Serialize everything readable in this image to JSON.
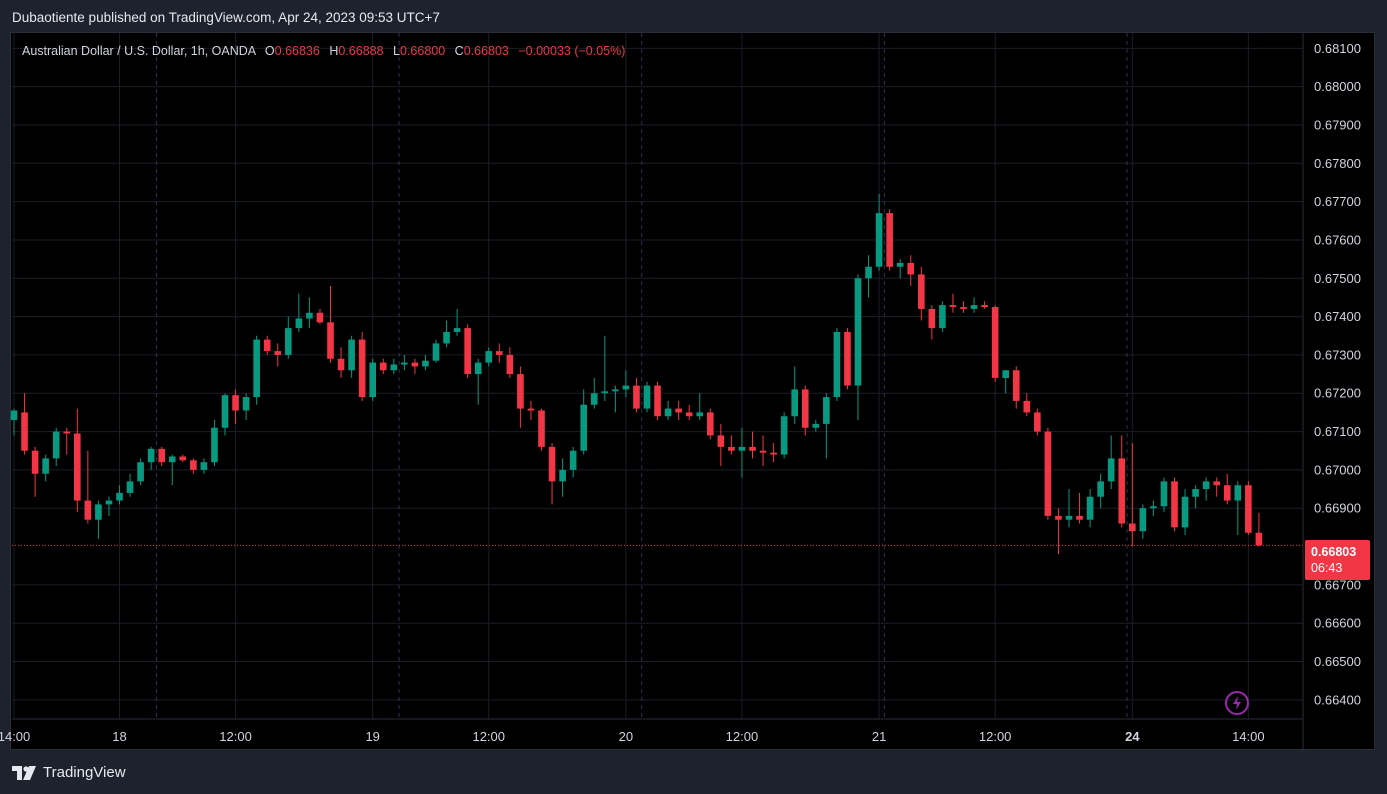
{
  "caption": "Dubaotiente published on TradingView.com, Apr 24, 2023 09:53 UTC+7",
  "legend": {
    "symbol": "Australian Dollar / U.S. Dollar, 1h, OANDA",
    "o_label": "O",
    "o_value": "0.66836",
    "h_label": "H",
    "h_value": "0.66888",
    "l_label": "L",
    "l_value": "0.66800",
    "c_label": "C",
    "c_value": "0.66803",
    "change": "−0.00033 (−0.05%)"
  },
  "last_price": {
    "price": "0.66803",
    "countdown": "06:43",
    "value": 0.66803
  },
  "brand": {
    "name": "TradingView"
  },
  "colors": {
    "up": "#089981",
    "down": "#f23645",
    "background": "#000000",
    "grid": "#1b1e27",
    "axis_text": "#d1d4dc",
    "separator": "#2a3550"
  },
  "chart_data": {
    "type": "candlestick",
    "timeframe": "1h",
    "ylim": [
      0.6635,
      0.6814
    ],
    "y_ticks": [
      "0.68100",
      "0.68000",
      "0.67900",
      "0.67800",
      "0.67700",
      "0.67600",
      "0.67500",
      "0.67400",
      "0.67300",
      "0.67200",
      "0.67100",
      "0.67000",
      "0.66900",
      "0.66700",
      "0.66600",
      "0.66500",
      "0.66400"
    ],
    "x_ticks": [
      {
        "label": "14:00",
        "bar": 0
      },
      {
        "label": "18",
        "bar": 10
      },
      {
        "label": "12:00",
        "bar": 21
      },
      {
        "label": "19",
        "bar": 34
      },
      {
        "label": "12:00",
        "bar": 45
      },
      {
        "label": "20",
        "bar": 58
      },
      {
        "label": "12:00",
        "bar": 69
      },
      {
        "label": "21",
        "bar": 82
      },
      {
        "label": "12:00",
        "bar": 93
      },
      {
        "label": "24",
        "bar": 106
      },
      {
        "label": "14:00",
        "bar": 117
      }
    ],
    "day_separators": [
      13.5,
      36.5,
      59.5,
      82.5,
      105.5
    ],
    "candles": [
      [
        0.6713,
        0.6716,
        0.6709,
        0.67155
      ],
      [
        0.6715,
        0.672,
        0.6704,
        0.6705
      ],
      [
        0.6705,
        0.6706,
        0.6693,
        0.6699
      ],
      [
        0.6699,
        0.6704,
        0.6697,
        0.6703
      ],
      [
        0.6703,
        0.6711,
        0.6701,
        0.671
      ],
      [
        0.671,
        0.6711,
        0.6704,
        0.67095
      ],
      [
        0.67095,
        0.6716,
        0.6689,
        0.6692
      ],
      [
        0.6692,
        0.6705,
        0.6686,
        0.6687
      ],
      [
        0.6687,
        0.6692,
        0.6682,
        0.6691
      ],
      [
        0.6691,
        0.6693,
        0.6688,
        0.6692
      ],
      [
        0.6692,
        0.6696,
        0.6691,
        0.6694
      ],
      [
        0.6694,
        0.6699,
        0.6693,
        0.6697
      ],
      [
        0.6697,
        0.6703,
        0.6696,
        0.6702
      ],
      [
        0.6702,
        0.6706,
        0.67,
        0.67055
      ],
      [
        0.67055,
        0.6706,
        0.6701,
        0.6702
      ],
      [
        0.6702,
        0.6704,
        0.6696,
        0.67035
      ],
      [
        0.67035,
        0.6704,
        0.6702,
        0.67025
      ],
      [
        0.67025,
        0.6703,
        0.6699,
        0.67
      ],
      [
        0.67,
        0.6703,
        0.6699,
        0.6702
      ],
      [
        0.6702,
        0.6713,
        0.6701,
        0.6711
      ],
      [
        0.6711,
        0.672,
        0.6709,
        0.67195
      ],
      [
        0.67195,
        0.6721,
        0.6712,
        0.67155
      ],
      [
        0.67155,
        0.672,
        0.6713,
        0.6719
      ],
      [
        0.6719,
        0.6735,
        0.6717,
        0.6734
      ],
      [
        0.6734,
        0.6735,
        0.673,
        0.6731
      ],
      [
        0.6731,
        0.6733,
        0.6727,
        0.673
      ],
      [
        0.673,
        0.674,
        0.6729,
        0.6737
      ],
      [
        0.6737,
        0.6746,
        0.6736,
        0.67395
      ],
      [
        0.67395,
        0.6745,
        0.6737,
        0.6741
      ],
      [
        0.6741,
        0.6742,
        0.6738,
        0.67385
      ],
      [
        0.67385,
        0.6748,
        0.6728,
        0.6729
      ],
      [
        0.6729,
        0.6732,
        0.6724,
        0.6726
      ],
      [
        0.6726,
        0.6735,
        0.6724,
        0.6734
      ],
      [
        0.6734,
        0.6736,
        0.6718,
        0.6719
      ],
      [
        0.6719,
        0.6729,
        0.6718,
        0.6728
      ],
      [
        0.6728,
        0.6729,
        0.6725,
        0.6726
      ],
      [
        0.6726,
        0.6729,
        0.6725,
        0.67275
      ],
      [
        0.67275,
        0.673,
        0.6726,
        0.6728
      ],
      [
        0.6728,
        0.6729,
        0.6725,
        0.6727
      ],
      [
        0.6727,
        0.673,
        0.6726,
        0.67285
      ],
      [
        0.67285,
        0.6734,
        0.6728,
        0.6733
      ],
      [
        0.6733,
        0.6739,
        0.6732,
        0.6736
      ],
      [
        0.6736,
        0.6742,
        0.6735,
        0.6737
      ],
      [
        0.6737,
        0.6738,
        0.6724,
        0.6725
      ],
      [
        0.6725,
        0.6729,
        0.6717,
        0.6728
      ],
      [
        0.6728,
        0.6732,
        0.6727,
        0.6731
      ],
      [
        0.6731,
        0.6733,
        0.6728,
        0.673
      ],
      [
        0.673,
        0.6732,
        0.6724,
        0.6725
      ],
      [
        0.6725,
        0.6727,
        0.6711,
        0.6716
      ],
      [
        0.6716,
        0.6718,
        0.6713,
        0.67155
      ],
      [
        0.67155,
        0.6716,
        0.6705,
        0.6706
      ],
      [
        0.6706,
        0.6707,
        0.6691,
        0.6697
      ],
      [
        0.6697,
        0.6703,
        0.6693,
        0.67
      ],
      [
        0.67,
        0.6706,
        0.6698,
        0.6705
      ],
      [
        0.6705,
        0.6721,
        0.6704,
        0.6717
      ],
      [
        0.6717,
        0.6724,
        0.6716,
        0.672
      ],
      [
        0.672,
        0.6735,
        0.6718,
        0.67205
      ],
      [
        0.67205,
        0.6722,
        0.6715,
        0.6721
      ],
      [
        0.6721,
        0.6726,
        0.6719,
        0.6722
      ],
      [
        0.6722,
        0.6724,
        0.6715,
        0.6716
      ],
      [
        0.6716,
        0.6723,
        0.6715,
        0.6722
      ],
      [
        0.6722,
        0.6723,
        0.6713,
        0.6714
      ],
      [
        0.6714,
        0.6718,
        0.6713,
        0.6716
      ],
      [
        0.6716,
        0.6718,
        0.6713,
        0.6715
      ],
      [
        0.6715,
        0.6717,
        0.6713,
        0.6714
      ],
      [
        0.6714,
        0.672,
        0.6713,
        0.6715
      ],
      [
        0.6715,
        0.6716,
        0.6708,
        0.6709
      ],
      [
        0.6709,
        0.6712,
        0.6701,
        0.6706
      ],
      [
        0.6706,
        0.6709,
        0.6704,
        0.6705
      ],
      [
        0.6705,
        0.6711,
        0.6698,
        0.6706
      ],
      [
        0.6706,
        0.671,
        0.6703,
        0.6705
      ],
      [
        0.6705,
        0.6709,
        0.6701,
        0.67045
      ],
      [
        0.67045,
        0.6707,
        0.6702,
        0.6704
      ],
      [
        0.6704,
        0.6715,
        0.6703,
        0.6714
      ],
      [
        0.6714,
        0.6727,
        0.6712,
        0.6721
      ],
      [
        0.6721,
        0.6722,
        0.6709,
        0.6711
      ],
      [
        0.6711,
        0.6713,
        0.671,
        0.6712
      ],
      [
        0.6712,
        0.672,
        0.6703,
        0.6719
      ],
      [
        0.6719,
        0.6737,
        0.6718,
        0.6736
      ],
      [
        0.6736,
        0.6737,
        0.6721,
        0.6722
      ],
      [
        0.6722,
        0.6751,
        0.6713,
        0.675
      ],
      [
        0.675,
        0.6756,
        0.6745,
        0.6753
      ],
      [
        0.6753,
        0.6772,
        0.6752,
        0.6767
      ],
      [
        0.6767,
        0.6768,
        0.6752,
        0.6753
      ],
      [
        0.6753,
        0.6755,
        0.675,
        0.6754
      ],
      [
        0.6754,
        0.6756,
        0.6748,
        0.6751
      ],
      [
        0.6751,
        0.6753,
        0.6739,
        0.6742
      ],
      [
        0.6742,
        0.6743,
        0.6734,
        0.6737
      ],
      [
        0.6737,
        0.6744,
        0.6736,
        0.6743
      ],
      [
        0.6743,
        0.6746,
        0.6741,
        0.67425
      ],
      [
        0.67425,
        0.6744,
        0.6741,
        0.6742
      ],
      [
        0.6742,
        0.6745,
        0.6741,
        0.6743
      ],
      [
        0.6743,
        0.6744,
        0.6742,
        0.67425
      ],
      [
        0.67425,
        0.6743,
        0.6723,
        0.6724
      ],
      [
        0.6724,
        0.6726,
        0.672,
        0.6726
      ],
      [
        0.6726,
        0.6727,
        0.6716,
        0.6718
      ],
      [
        0.6718,
        0.672,
        0.6714,
        0.6715
      ],
      [
        0.6715,
        0.6716,
        0.6709,
        0.671
      ],
      [
        0.671,
        0.6711,
        0.6687,
        0.6688
      ],
      [
        0.6688,
        0.669,
        0.6678,
        0.6687
      ],
      [
        0.6687,
        0.6695,
        0.6685,
        0.6688
      ],
      [
        0.6688,
        0.6694,
        0.6686,
        0.6687
      ],
      [
        0.6687,
        0.6695,
        0.6685,
        0.6693
      ],
      [
        0.6693,
        0.6699,
        0.669,
        0.6697
      ],
      [
        0.6697,
        0.6709,
        0.6695,
        0.6703
      ],
      [
        0.6703,
        0.6709,
        0.6685,
        0.6686
      ],
      [
        0.6686,
        0.6707,
        0.668,
        0.6684
      ],
      [
        0.6684,
        0.6691,
        0.6682,
        0.669
      ],
      [
        0.669,
        0.6692,
        0.6688,
        0.66905
      ],
      [
        0.66905,
        0.6698,
        0.6689,
        0.6697
      ],
      [
        0.6697,
        0.6698,
        0.6684,
        0.6685
      ],
      [
        0.6685,
        0.6695,
        0.6683,
        0.6693
      ],
      [
        0.6693,
        0.6696,
        0.669,
        0.6695
      ],
      [
        0.6695,
        0.6698,
        0.6692,
        0.6697
      ],
      [
        0.6697,
        0.6698,
        0.6693,
        0.6696
      ],
      [
        0.6696,
        0.6699,
        0.6691,
        0.6692
      ],
      [
        0.6692,
        0.6697,
        0.6683,
        0.6696
      ],
      [
        0.6696,
        0.6697,
        0.6683,
        0.66836
      ],
      [
        0.66836,
        0.66888,
        0.668,
        0.66803
      ]
    ]
  }
}
